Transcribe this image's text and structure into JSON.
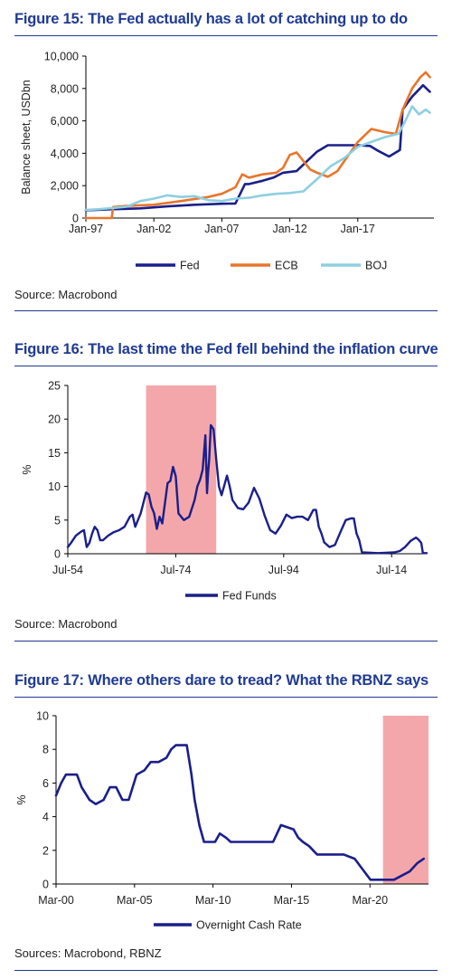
{
  "figures": [
    {
      "title": "Figure 15: The Fed actually has a lot of catching up to do",
      "source": "Source: Macrobond"
    },
    {
      "title": "Figure 16: The last time the Fed fell behind the inflation curve",
      "source": "Source: Macrobond"
    },
    {
      "title": "Figure 17: Where others dare to tread? What the RBNZ says",
      "source": "Sources: Macrobond, RBNZ"
    }
  ],
  "chart_data": [
    {
      "type": "line",
      "title": "Figure 15: The Fed actually has a lot of catching up to do",
      "xlabel": "",
      "ylabel": "Balance sheet, USDbn",
      "xlim": [
        1997.0,
        2022.6
      ],
      "ylim": [
        0,
        10000
      ],
      "yticks": [
        0,
        2000,
        4000,
        6000,
        8000,
        10000
      ],
      "ytick_labels": [
        "0",
        "2,000",
        "4,000",
        "6,000",
        "8,000",
        "10,000"
      ],
      "xticks": [
        1997,
        2002,
        2007,
        2012,
        2017
      ],
      "xtick_labels": [
        "Jan-97",
        "Jan-02",
        "Jan-07",
        "Jan-12",
        "Jan-17"
      ],
      "grid": false,
      "legend": "bottom",
      "series": [
        {
          "name": "Fed",
          "color": "#1a1f8a",
          "x": [
            1997.0,
            1999.0,
            2001.0,
            2003.0,
            2005.0,
            2007.0,
            2008.0,
            2008.7,
            2009.0,
            2010.0,
            2010.8,
            2011.5,
            2012.5,
            2013.0,
            2014.0,
            2014.8,
            2016.0,
            2017.0,
            2017.9,
            2018.5,
            2019.3,
            2019.7,
            2020.1,
            2020.3,
            2021.0,
            2021.8,
            2022.3
          ],
          "y": [
            480,
            550,
            600,
            720,
            820,
            880,
            900,
            2100,
            2100,
            2300,
            2500,
            2800,
            2900,
            3300,
            4100,
            4500,
            4500,
            4500,
            4450,
            4150,
            3800,
            4000,
            4200,
            6700,
            7500,
            8200,
            7800
          ]
        },
        {
          "name": "ECB",
          "color": "#e8762b",
          "x": [
            1997.0,
            1998.9,
            1999.0,
            2000.0,
            2002.0,
            2004.0,
            2006.0,
            2007.0,
            2008.0,
            2008.5,
            2009.0,
            2010.0,
            2011.0,
            2011.5,
            2012.0,
            2012.5,
            2013.5,
            2014.0,
            2014.8,
            2015.5,
            2016.0,
            2017.0,
            2018.0,
            2019.0,
            2019.8,
            2020.3,
            2021.0,
            2021.6,
            2022.0,
            2022.3
          ],
          "y": [
            0,
            0,
            680,
            750,
            820,
            1050,
            1300,
            1500,
            1900,
            2700,
            2500,
            2700,
            2800,
            3100,
            3900,
            4050,
            3000,
            2800,
            2550,
            2900,
            3500,
            4700,
            5500,
            5300,
            5200,
            6700,
            8000,
            8700,
            9000,
            8700
          ]
        },
        {
          "name": "BOJ",
          "color": "#8ecfe0",
          "x": [
            1997.0,
            1998.0,
            2000.0,
            2001.0,
            2002.0,
            2003.0,
            2004.0,
            2005.0,
            2006.0,
            2007.0,
            2008.0,
            2009.0,
            2010.0,
            2011.0,
            2012.0,
            2013.0,
            2014.0,
            2015.0,
            2016.0,
            2017.0,
            2018.0,
            2019.0,
            2020.0,
            2020.5,
            2021.0,
            2021.5,
            2022.0,
            2022.3
          ],
          "y": [
            500,
            550,
            700,
            1050,
            1200,
            1400,
            1300,
            1350,
            1100,
            1050,
            1200,
            1250,
            1400,
            1500,
            1550,
            1650,
            2400,
            3200,
            3700,
            4400,
            4700,
            5000,
            5200,
            6000,
            6900,
            6400,
            6700,
            6500
          ]
        }
      ]
    },
    {
      "type": "line",
      "title": "Figure 16: The last time the Fed fell behind the inflation curve",
      "xlabel": "",
      "ylabel": "%",
      "xlim": [
        1954.5,
        2021.0
      ],
      "ylim": [
        0,
        25
      ],
      "yticks": [
        0,
        5,
        10,
        15,
        20,
        25
      ],
      "ytick_labels": [
        "0",
        "5",
        "10",
        "15",
        "20",
        "25"
      ],
      "xticks": [
        1954.5,
        1974.5,
        1994.5,
        2014.5
      ],
      "xtick_labels": [
        "Jul-54",
        "Jul-74",
        "Jul-94",
        "Jul-14"
      ],
      "grid": false,
      "legend": "bottom",
      "shaded_ranges": [
        [
          1969.0,
          1982.0
        ]
      ],
      "shade_color": "#f4a7ab",
      "series": [
        {
          "name": "Fed Funds",
          "color": "#1a1f8a",
          "x": [
            1954.5,
            1955.0,
            1956.0,
            1957.0,
            1957.5,
            1958.0,
            1958.5,
            1959.0,
            1959.5,
            1960.0,
            1960.5,
            1961.0,
            1962.0,
            1963.0,
            1964.0,
            1965.0,
            1966.0,
            1966.5,
            1967.0,
            1968.0,
            1969.0,
            1969.5,
            1970.0,
            1970.5,
            1971.0,
            1971.5,
            1972.0,
            1973.0,
            1973.5,
            1974.0,
            1974.5,
            1975.0,
            1975.5,
            1976.0,
            1977.0,
            1978.0,
            1978.5,
            1979.0,
            1979.5,
            1980.0,
            1980.3,
            1980.5,
            1980.7,
            1981.0,
            1981.5,
            1982.0,
            1982.5,
            1983.0,
            1984.0,
            1984.5,
            1985.0,
            1986.0,
            1987.0,
            1988.0,
            1989.0,
            1989.5,
            1990.0,
            1991.0,
            1992.0,
            1993.0,
            1994.0,
            1995.0,
            1996.0,
            1997.0,
            1998.0,
            1999.0,
            2000.0,
            2000.5,
            2001.0,
            2001.5,
            2002.0,
            2003.0,
            2004.0,
            2005.0,
            2006.0,
            2007.0,
            2007.5,
            2008.0,
            2008.5,
            2009.0,
            2012.0,
            2015.0,
            2016.0,
            2017.0,
            2018.0,
            2019.0,
            2019.5,
            2020.0,
            2020.3,
            2021.0
          ],
          "y": [
            1.0,
            1.5,
            2.7,
            3.3,
            3.5,
            1.0,
            1.6,
            3.0,
            4.0,
            3.5,
            2.0,
            2.0,
            2.7,
            3.2,
            3.5,
            4.0,
            5.5,
            5.8,
            4.0,
            6.0,
            9.1,
            8.8,
            7.0,
            6.0,
            3.7,
            5.5,
            4.5,
            10.5,
            10.8,
            12.9,
            11.5,
            6.0,
            5.5,
            5.0,
            5.5,
            8.0,
            10.0,
            11.0,
            12.5,
            17.6,
            9.0,
            12.0,
            14.0,
            19.1,
            18.5,
            14.0,
            10.0,
            8.7,
            11.6,
            10.0,
            8.0,
            6.8,
            6.6,
            7.6,
            9.8,
            9.0,
            8.2,
            5.6,
            3.5,
            3.0,
            4.2,
            5.8,
            5.3,
            5.5,
            5.5,
            5.0,
            6.5,
            6.5,
            4.0,
            3.0,
            1.7,
            1.0,
            1.3,
            3.2,
            5.0,
            5.25,
            5.25,
            3.0,
            2.0,
            0.2,
            0.1,
            0.2,
            0.4,
            1.0,
            1.9,
            2.4,
            2.1,
            1.6,
            0.1,
            0.1
          ]
        }
      ]
    },
    {
      "type": "line",
      "title": "Figure 17: Where others dare to tread? What the RBNZ says",
      "xlabel": "",
      "ylabel": "%",
      "xlim": [
        2000.17,
        2023.9
      ],
      "ylim": [
        0,
        10
      ],
      "yticks": [
        0,
        2,
        4,
        6,
        8,
        10
      ],
      "ytick_labels": [
        "0",
        "2",
        "4",
        "6",
        "8",
        "10"
      ],
      "xticks": [
        2000.17,
        2005.17,
        2010.17,
        2015.17,
        2020.17
      ],
      "xtick_labels": [
        "Mar-00",
        "Mar-05",
        "Mar-10",
        "Mar-15",
        "Mar-20"
      ],
      "grid": false,
      "legend": "bottom",
      "shaded_ranges": [
        [
          2021.0,
          2023.9
        ]
      ],
      "shade_color": "#f4a7ab",
      "series": [
        {
          "name": "Overnight Cash Rate",
          "color": "#1a1f8a",
          "x": [
            2000.17,
            2000.5,
            2000.8,
            2001.5,
            2001.8,
            2002.3,
            2002.7,
            2003.2,
            2003.6,
            2004.0,
            2004.4,
            2004.8,
            2005.3,
            2005.8,
            2006.2,
            2006.7,
            2007.2,
            2007.5,
            2007.8,
            2008.0,
            2008.5,
            2008.8,
            2009.0,
            2009.3,
            2009.6,
            2010.3,
            2010.6,
            2011.0,
            2011.3,
            2012.0,
            2013.0,
            2014.0,
            2014.5,
            2015.3,
            2015.6,
            2015.9,
            2016.3,
            2016.8,
            2017.5,
            2018.5,
            2019.2,
            2019.6,
            2020.2,
            2021.0,
            2021.7,
            2022.2,
            2022.7,
            2023.2,
            2023.6
          ],
          "y": [
            5.25,
            6.0,
            6.5,
            6.5,
            5.75,
            5.0,
            4.75,
            5.0,
            5.75,
            5.75,
            5.0,
            5.0,
            6.5,
            6.75,
            7.25,
            7.25,
            7.5,
            8.0,
            8.25,
            8.25,
            8.25,
            6.5,
            5.0,
            3.5,
            2.5,
            2.5,
            3.0,
            2.75,
            2.5,
            2.5,
            2.5,
            2.5,
            3.5,
            3.25,
            2.75,
            2.5,
            2.25,
            1.75,
            1.75,
            1.75,
            1.5,
            1.0,
            0.25,
            0.25,
            0.25,
            0.5,
            0.75,
            1.25,
            1.5
          ]
        }
      ]
    }
  ]
}
